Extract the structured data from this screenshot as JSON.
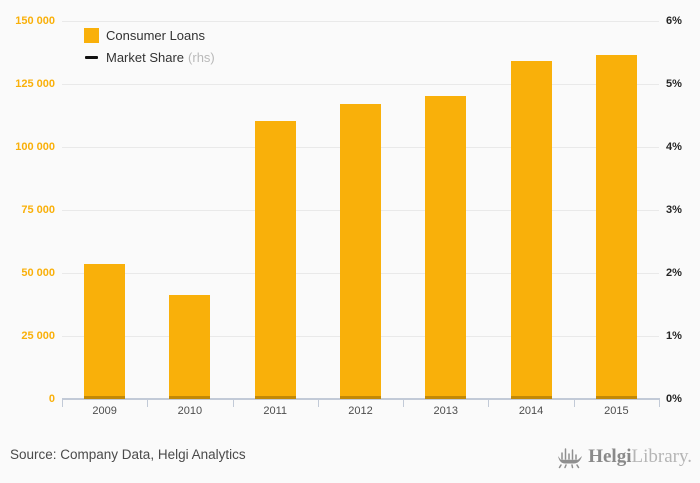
{
  "page": {
    "background": "#fafafa"
  },
  "legend": {
    "items": [
      {
        "label": "Consumer Loans",
        "marker": "square",
        "color": "#f9b00a"
      },
      {
        "label": "Market Share",
        "suffix": "(rhs)",
        "marker": "line",
        "color": "#111111"
      }
    ]
  },
  "chart_data": {
    "type": "bar",
    "title": "",
    "categories": [
      "2009",
      "2010",
      "2011",
      "2012",
      "2013",
      "2014",
      "2015"
    ],
    "series": [
      {
        "name": "Consumer Loans",
        "type": "bar",
        "axis": "left",
        "color": "#f9b00a",
        "values": [
          53700,
          41300,
          110400,
          117200,
          120200,
          134200,
          136700
        ]
      },
      {
        "name": "Market Share (rhs)",
        "type": "line",
        "axis": "right",
        "color": "#111111",
        "values": [
          0,
          0,
          0,
          0,
          0,
          0,
          0
        ]
      }
    ],
    "left_axis": {
      "min": 0,
      "max": 150000,
      "tick_step": 25000,
      "tick_labels": [
        "0",
        "25 000",
        "50 000",
        "75 000",
        "100 000",
        "125 000",
        "150 000"
      ],
      "color": "#f9b00a"
    },
    "right_axis": {
      "min": 0,
      "max": 6,
      "tick_step": 1,
      "tick_labels": [
        "0%",
        "1%",
        "2%",
        "3%",
        "4%",
        "5%",
        "6%"
      ],
      "color": "#262626"
    },
    "grid": true,
    "legend_position": "top-left"
  },
  "footer": {
    "source": "Source: Company Data, Helgi Analytics",
    "logo": {
      "icon": "helgi-ship-icon",
      "name": "Helgi",
      "name2": "Library."
    }
  }
}
